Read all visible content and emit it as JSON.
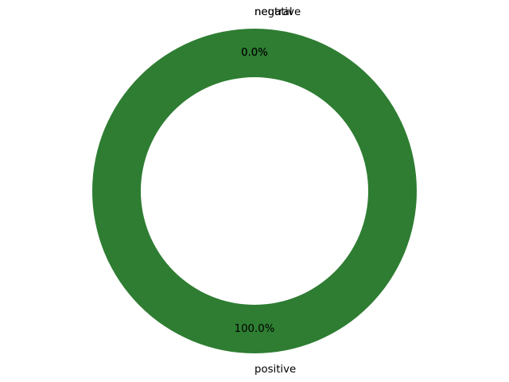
{
  "chart_data": {
    "type": "pie",
    "style": "donut",
    "title": "",
    "slices": [
      {
        "label": "negative",
        "value": 0.0,
        "pct_label": "0.0%",
        "color": "#1f77b4"
      },
      {
        "label": "neutral",
        "value": 0.0,
        "pct_label": "0.0%",
        "color": "#ff7f0e"
      },
      {
        "label": "positive",
        "value": 100.0,
        "pct_label": "100.0%",
        "color": "#2e7d32"
      }
    ],
    "legend": "none"
  }
}
